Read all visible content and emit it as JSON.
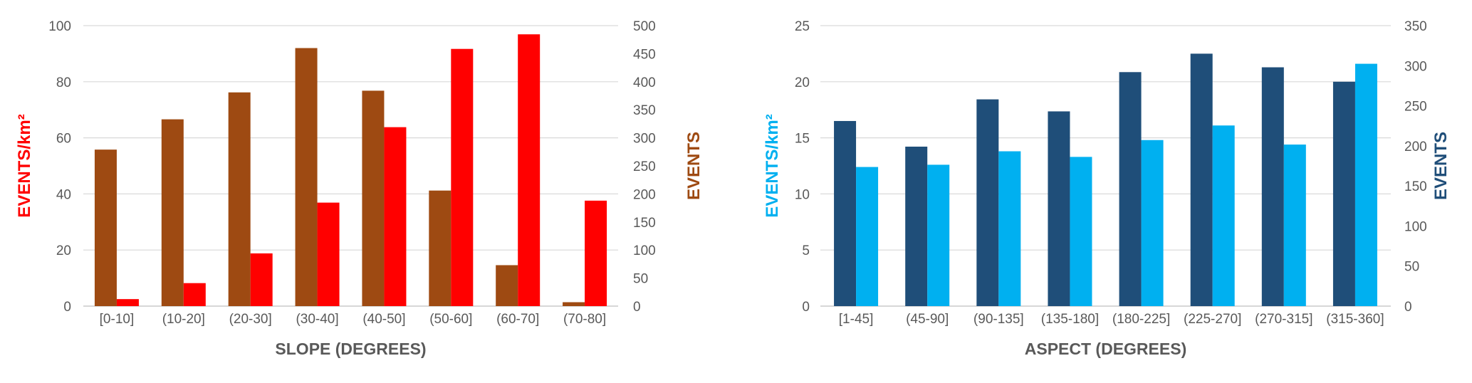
{
  "chart_data": [
    {
      "type": "bar",
      "xlabel": "SLOPE (DEGREES)",
      "ylabel_left": "EVENTS/km²",
      "ylabel_right": "EVENTS",
      "categories": [
        "[0-10]",
        "(10-20]",
        "(20-30]",
        "(30-40]",
        "(40-50]",
        "(50-60]",
        "(60-70]",
        "(70-80]"
      ],
      "ylim_left": [
        0,
        100
      ],
      "yticks_left": [
        0,
        20,
        40,
        60,
        80,
        100
      ],
      "ylim_right": [
        0,
        500
      ],
      "yticks_right": [
        0,
        50,
        100,
        150,
        200,
        250,
        300,
        350,
        400,
        450,
        500
      ],
      "grid": true,
      "legend": "none",
      "series": [
        {
          "axis": "right",
          "color": "#9E4A12",
          "values": [
            279,
            333,
            381,
            460,
            384,
            206,
            73,
            7
          ]
        },
        {
          "axis": "left",
          "color": "#FF0000",
          "values": [
            2.5,
            8.2,
            18.8,
            36.9,
            63.8,
            91.7,
            96.9,
            37.6
          ]
        }
      ],
      "colors": {
        "left_label": "#FF0000",
        "right_label": "#9E4A12"
      }
    },
    {
      "type": "bar",
      "xlabel": "ASPECT (DEGREES)",
      "ylabel_left": "EVENTS/km²",
      "ylabel_right": "EVENTS",
      "categories": [
        "[1-45]",
        "(45-90]",
        "(90-135]",
        "(135-180]",
        "(180-225]",
        "(225-270]",
        "(270-315]",
        "(315-360]"
      ],
      "ylim_left": [
        0,
        25
      ],
      "yticks_left": [
        0,
        5,
        10,
        15,
        20,
        25
      ],
      "ylim_right": [
        0,
        350
      ],
      "yticks_right": [
        0,
        50,
        100,
        150,
        200,
        250,
        300,
        350
      ],
      "grid": true,
      "legend": "none",
      "series": [
        {
          "axis": "right",
          "color": "#1F4E79",
          "values": [
            231,
            199,
            258,
            243,
            292,
            315,
            298,
            280
          ]
        },
        {
          "axis": "left",
          "color": "#00B0F0",
          "values": [
            12.4,
            12.6,
            13.8,
            13.3,
            14.8,
            16.1,
            14.4,
            21.6
          ]
        }
      ],
      "colors": {
        "left_label": "#00B0F0",
        "right_label": "#1F4E79"
      }
    }
  ]
}
